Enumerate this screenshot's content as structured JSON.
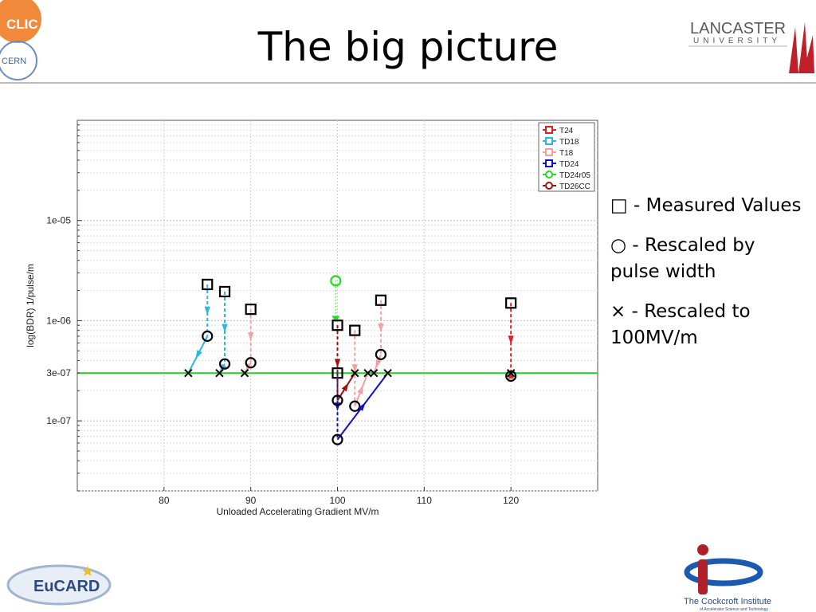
{
  "slide": {
    "title": "The big picture",
    "bullets": [
      "□ - Measured Values",
      "○ - Rescaled by pulse width",
      "× - Rescaled to 100MV/m"
    ]
  },
  "logos": {
    "clic": "CLIC",
    "cern": "CERN",
    "lancaster_line1": "LANCASTER",
    "lancaster_line2": "UNIVERSITY",
    "eucard": "EuCARD",
    "cockcroft_line1": "The Cockcroft Institute",
    "cockcroft_line2": "of Accelerator Science and Technology"
  },
  "colors": {
    "T24": "#e02020",
    "TD18": "#29b6e8",
    "T18": "#f4a0a0",
    "TD24": "#1010cc",
    "TD24r05": "#22dd22",
    "TD26CC": "#a01010",
    "reference": "#22dd22"
  },
  "chart_data": {
    "type": "scatter",
    "xlabel": "Unloaded Accelerating Gradient MV/m",
    "ylabel": "log(BDR) 1/pulse/m",
    "xlim": [
      70,
      130
    ],
    "ylim": [
      2e-08,
      0.0001
    ],
    "yscale": "log",
    "xticks": [
      80,
      90,
      100,
      110,
      120
    ],
    "yticks": [
      {
        "value": 1e-05,
        "label": "1e-05"
      },
      {
        "value": 1e-06,
        "label": "1e-06"
      },
      {
        "value": 3e-07,
        "label": "3e-07"
      },
      {
        "value": 1e-07,
        "label": "1e-07"
      }
    ],
    "grid": true,
    "legend_position": "top-right",
    "reference_line": {
      "y": 3e-07
    },
    "series": [
      {
        "name": "T24",
        "measured": [
          120,
          1.5e-06
        ],
        "rescaled_pulse": [
          120,
          2.8e-07
        ],
        "rescaled_100": [
          120,
          3e-07
        ]
      },
      {
        "name": "TD18",
        "measured": [
          85,
          2.3e-06
        ],
        "rescaled_pulse": [
          85,
          7e-07
        ],
        "rescaled_100": [
          82.8,
          3e-07
        ]
      },
      {
        "name": "TD18",
        "measured": [
          87,
          1.95e-06
        ],
        "rescaled_pulse": [
          87,
          3.7e-07
        ],
        "rescaled_100": [
          86.4,
          3e-07
        ]
      },
      {
        "name": "T18",
        "measured": [
          90,
          1.3e-06
        ],
        "rescaled_pulse": [
          90,
          3.8e-07
        ],
        "rescaled_100": [
          89.3,
          3e-07
        ]
      },
      {
        "name": "T18",
        "measured": [
          102,
          8e-07
        ],
        "rescaled_pulse": [
          102,
          1.4e-07
        ],
        "rescaled_100": [
          103.5,
          3e-07
        ]
      },
      {
        "name": "T18",
        "measured": [
          105,
          1.6e-06
        ],
        "rescaled_pulse": [
          105,
          4.6e-07
        ],
        "rescaled_100": [
          104.2,
          3e-07
        ]
      },
      {
        "name": "TD24",
        "measured": [
          100,
          3e-07
        ],
        "rescaled_pulse": [
          100,
          6.5e-08
        ],
        "rescaled_100": [
          105.8,
          3e-07
        ]
      },
      {
        "name": "TD24r05",
        "measured": null,
        "rescaled_pulse": [
          99.8,
          2.5e-06
        ],
        "rescaled_100": null
      },
      {
        "name": "TD26CC",
        "measured": [
          100,
          9e-07
        ],
        "rescaled_pulse": [
          100,
          1.6e-07
        ],
        "rescaled_100": [
          102,
          3e-07
        ]
      }
    ]
  }
}
